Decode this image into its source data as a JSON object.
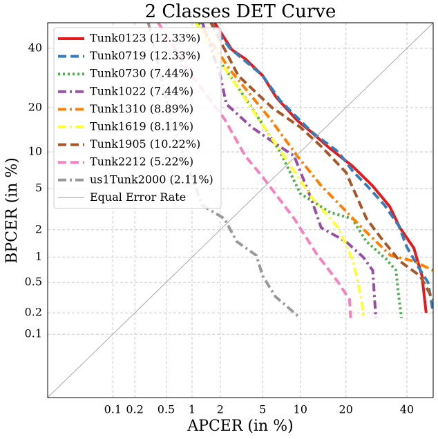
{
  "chart_data": {
    "type": "line",
    "title": "2 Classes DET Curve",
    "xlabel": "APCER (in %)",
    "ylabel": "BPCER (in %)",
    "xscale": "probit",
    "yscale": "probit",
    "xlim": [
      0.01,
      50
    ],
    "ylim": [
      0.01,
      50
    ],
    "xticks": [
      0.1,
      0.2,
      0.5,
      1,
      2,
      5,
      10,
      20,
      40
    ],
    "yticks": [
      0.1,
      0.2,
      0.5,
      1,
      2,
      5,
      10,
      20,
      40
    ],
    "grid": true,
    "legend": "upper left",
    "series": [
      {
        "name": "Tunk0123 (12.33%)",
        "color": "#e41a1c",
        "linestyle": "solid",
        "x": [
          1.75,
          2.6,
          3.5,
          5,
          6.5,
          9.5,
          11.9,
          16,
          21.7,
          27.9,
          33.8,
          37.4,
          42.6,
          45.7,
          47.3
        ],
        "values": [
          50,
          39.5,
          36,
          30,
          23,
          16.6,
          14,
          10.6,
          7.8,
          5.3,
          3.4,
          2.1,
          1.27,
          0.6,
          0.2
        ]
      },
      {
        "name": "Tunk0719 (12.33%)",
        "color": "#377eb8",
        "linestyle": "dashed",
        "x": [
          1.6,
          2.5,
          5,
          7,
          12,
          18,
          22,
          27,
          32,
          37,
          40,
          44,
          48,
          50
        ],
        "values": [
          50,
          40,
          30,
          22,
          14,
          10,
          7,
          5,
          3.5,
          2.2,
          1.3,
          0.8,
          0.5,
          0.2
        ]
      },
      {
        "name": "Tunk0730 (7.44%)",
        "color": "#4daf4a",
        "linestyle": "dotted",
        "x": [
          1.2,
          2,
          4,
          7,
          10,
          16,
          21.7,
          26,
          28,
          32.5,
          36,
          37,
          38
        ],
        "values": [
          50,
          35,
          20,
          10,
          4.5,
          3,
          2.6,
          1.5,
          1.3,
          0.95,
          0.7,
          0.33,
          0.17
        ]
      },
      {
        "name": "Tunk1022 (7.44%)",
        "color": "#984ea3",
        "linestyle": "dashdot",
        "x": [
          1.3,
          2,
          2.3,
          4,
          6,
          9,
          12,
          14,
          20,
          25,
          28,
          29
        ],
        "values": [
          50,
          30,
          21,
          15,
          12,
          9.3,
          4,
          2.1,
          1.5,
          1,
          0.7,
          0.17
        ]
      },
      {
        "name": "Tunk1310 (8.89%)",
        "color": "#ff7f00",
        "linestyle": "dashdot",
        "x": [
          1.3,
          2.5,
          5.8,
          9.5,
          14,
          24.6,
          34,
          42.6,
          50
        ],
        "values": [
          48,
          32,
          17,
          9.3,
          5.3,
          2.1,
          1.05,
          0.9,
          0.7
        ]
      },
      {
        "name": "Tunk1619 (8.11%)",
        "color": "#ffff33",
        "linestyle": "dashdot",
        "x": [
          1.1,
          2,
          4.6,
          7.5,
          12,
          18,
          22,
          24.6,
          25
        ],
        "values": [
          50,
          35,
          17,
          9.3,
          4.2,
          2.1,
          0.9,
          0.28,
          0.17
        ]
      },
      {
        "name": "Tunk1905 (10.22%)",
        "color": "#a65628",
        "linestyle": "dashed",
        "x": [
          1.6,
          3,
          6,
          10,
          14,
          20,
          26,
          31,
          37.4,
          45,
          50
        ],
        "values": [
          50,
          30,
          20,
          15,
          11,
          6.9,
          2.6,
          1.6,
          0.9,
          0.6,
          0.3
        ]
      },
      {
        "name": "Tunk2212 (5.22%)",
        "color": "#f781bf",
        "linestyle": "dashed",
        "x": [
          0.4,
          1,
          2.2,
          3.5,
          5,
          9,
          13,
          18,
          21,
          21.3
        ],
        "values": [
          50,
          30,
          17,
          9.3,
          6.3,
          2.6,
          1.1,
          0.5,
          0.3,
          0.17
        ]
      },
      {
        "name": "us1Tunk2000 (2.11%)",
        "color": "#999999",
        "linestyle": "dashdot",
        "x": [
          0.3,
          0.6,
          1.3,
          2.2,
          2.9,
          4.4,
          5,
          6.4,
          10
        ],
        "values": [
          50,
          15,
          3.5,
          2.6,
          1.5,
          1.05,
          0.6,
          0.33,
          0.17
        ]
      },
      {
        "name": "Equal Error Rate",
        "color": "#aaaaaa",
        "linestyle": "thin",
        "x": [
          0.01,
          50
        ],
        "values": [
          0.01,
          50
        ]
      }
    ]
  }
}
